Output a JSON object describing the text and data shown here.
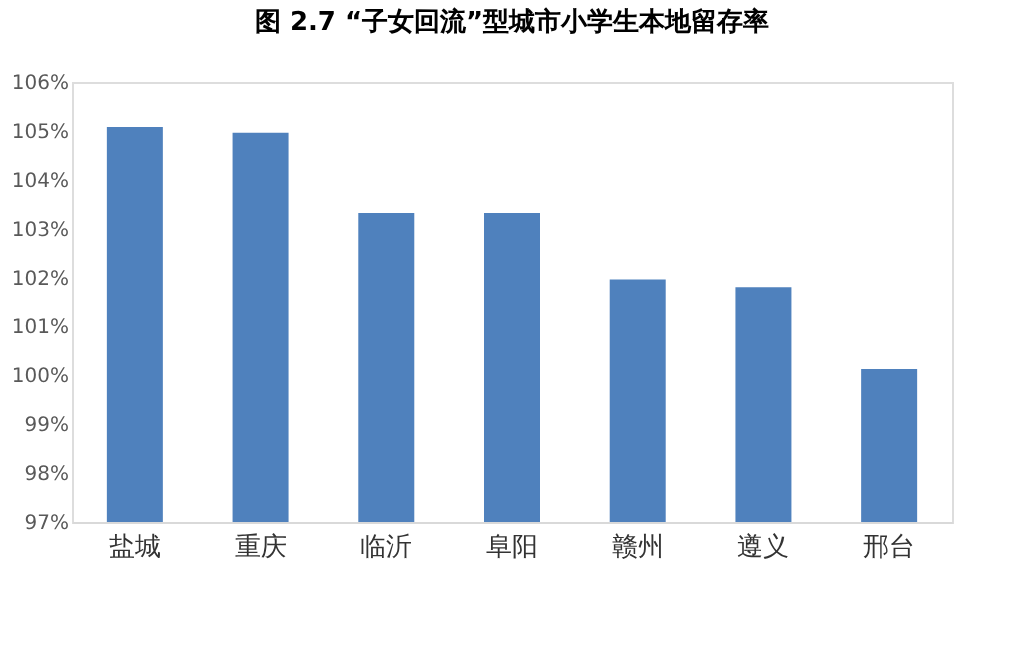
{
  "chart_data": {
    "type": "bar",
    "title": "图 2.7  “子女回流”型城市小学生本地留存率",
    "categories": [
      "盐城",
      "重庆",
      "临沂",
      "阜阳",
      "赣州",
      "遵义",
      "邢台"
    ],
    "values": [
      105.08,
      104.96,
      103.32,
      103.32,
      101.96,
      101.8,
      100.13
    ],
    "color": "#4f81bd",
    "ylim": [
      97,
      106
    ],
    "yticks": [
      {
        "value": 97,
        "label": "97%"
      },
      {
        "value": 98,
        "label": "98%"
      },
      {
        "value": 99,
        "label": "99%"
      },
      {
        "value": 100,
        "label": "100%"
      },
      {
        "value": 101,
        "label": "101%"
      },
      {
        "value": 102,
        "label": "102%"
      },
      {
        "value": 103,
        "label": "103%"
      },
      {
        "value": 104,
        "label": "104%"
      },
      {
        "value": 105,
        "label": "105%"
      },
      {
        "value": 106,
        "label": "106%"
      }
    ],
    "grid": false
  }
}
